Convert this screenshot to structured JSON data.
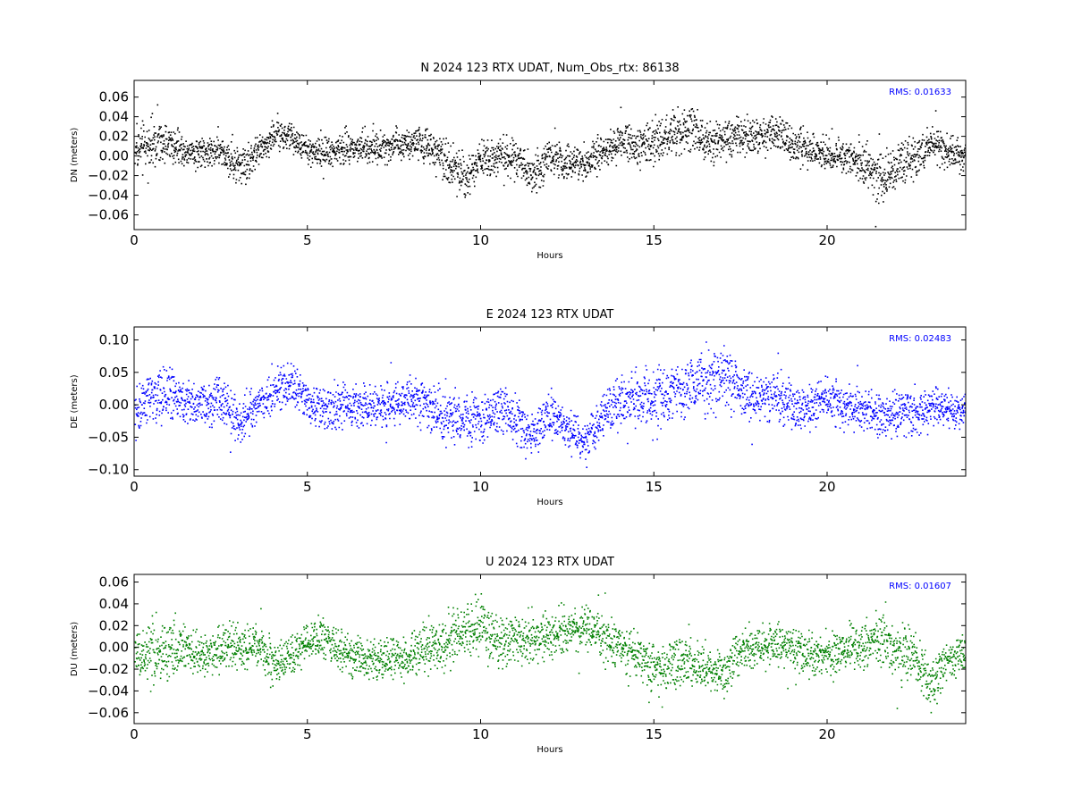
{
  "chart_data": [
    {
      "type": "scatter",
      "title": "N 2024 123 RTX  UDAT, Num_Obs_rtx: 86138",
      "xlabel": "Hours",
      "ylabel": "DN (meters)",
      "xlim": [
        0,
        24
      ],
      "ylim": [
        -0.075,
        0.077
      ],
      "xticks": [
        0,
        5,
        10,
        15,
        20
      ],
      "xtick_labels": [
        "0",
        "5",
        "10",
        "15",
        "20"
      ],
      "yticks": [
        -0.06,
        -0.04,
        -0.02,
        0.0,
        0.02,
        0.04,
        0.06
      ],
      "ytick_labels": [
        "−0.06",
        "−0.04",
        "−0.02",
        "0.00",
        "0.02",
        "0.04",
        "0.06"
      ],
      "annotation": "RMS:  0.01633",
      "annotation_color": "#0000ff",
      "series_color": "#000000",
      "rms": 0.01633,
      "hours": [
        0,
        0.5,
        1,
        1.5,
        2,
        2.5,
        3,
        3.5,
        4,
        4.5,
        5,
        5.5,
        6,
        6.5,
        7,
        7.5,
        8,
        8.5,
        9,
        9.5,
        10,
        10.5,
        11,
        11.5,
        12,
        12.5,
        13,
        13.5,
        14,
        14.5,
        15,
        15.5,
        16,
        16.5,
        17,
        17.5,
        18,
        18.5,
        19,
        19.5,
        20,
        20.5,
        21,
        21.5,
        22,
        22.5,
        23,
        23.5,
        24
      ],
      "center": [
        0.008,
        0.012,
        0.014,
        0.006,
        0.004,
        0.006,
        -0.012,
        0.002,
        0.022,
        0.018,
        0.006,
        0.004,
        0.006,
        0.012,
        0.008,
        0.012,
        0.016,
        0.01,
        -0.006,
        -0.018,
        -0.004,
        0.002,
        -0.002,
        -0.02,
        -0.002,
        -0.006,
        -0.008,
        0.006,
        0.014,
        0.01,
        0.016,
        0.024,
        0.03,
        0.016,
        0.018,
        0.02,
        0.02,
        0.026,
        0.012,
        0.006,
        0.002,
        0.0,
        -0.004,
        -0.026,
        -0.01,
        -0.004,
        0.014,
        0.004,
        0.0
      ],
      "spread": [
        0.014,
        0.018,
        0.014,
        0.012,
        0.012,
        0.012,
        0.016,
        0.012,
        0.012,
        0.01,
        0.01,
        0.014,
        0.014,
        0.012,
        0.012,
        0.012,
        0.012,
        0.014,
        0.016,
        0.018,
        0.014,
        0.014,
        0.014,
        0.016,
        0.014,
        0.014,
        0.014,
        0.014,
        0.016,
        0.016,
        0.016,
        0.018,
        0.018,
        0.014,
        0.014,
        0.016,
        0.014,
        0.016,
        0.014,
        0.012,
        0.012,
        0.012,
        0.016,
        0.018,
        0.018,
        0.016,
        0.012,
        0.012,
        0.012
      ]
    },
    {
      "type": "scatter",
      "title": "E 2024 123 RTX  UDAT",
      "xlabel": "Hours",
      "ylabel": "DE (meters)",
      "xlim": [
        0,
        24
      ],
      "ylim": [
        -0.11,
        0.12
      ],
      "xticks": [
        0,
        5,
        10,
        15,
        20
      ],
      "xtick_labels": [
        "0",
        "5",
        "10",
        "15",
        "20"
      ],
      "yticks": [
        -0.1,
        -0.05,
        0.0,
        0.05,
        0.1
      ],
      "ytick_labels": [
        "−0.10",
        "−0.05",
        "0.00",
        "0.05",
        "0.10"
      ],
      "annotation": "RMS:  0.02483",
      "annotation_color": "#0000ff",
      "series_color": "#0000ff",
      "rms": 0.02483,
      "hours": [
        0,
        0.5,
        1,
        1.5,
        2,
        2.5,
        3,
        3.5,
        4,
        4.5,
        5,
        5.5,
        6,
        6.5,
        7,
        7.5,
        8,
        8.5,
        9,
        9.5,
        10,
        10.5,
        11,
        11.5,
        12,
        12.5,
        13,
        13.5,
        14,
        14.5,
        15,
        15.5,
        16,
        16.5,
        17,
        17.5,
        18,
        18.5,
        19,
        19.5,
        20,
        20.5,
        21,
        21.5,
        22,
        22.5,
        23,
        23.5,
        24
      ],
      "center": [
        -0.01,
        0.01,
        0.02,
        0.005,
        0.0,
        0.01,
        -0.025,
        0.0,
        0.02,
        0.035,
        0.005,
        -0.01,
        0.0,
        0.0,
        -0.005,
        0.005,
        0.01,
        0.0,
        -0.015,
        -0.02,
        -0.02,
        -0.01,
        -0.025,
        -0.045,
        -0.015,
        -0.035,
        -0.055,
        -0.015,
        0.0,
        0.015,
        0.01,
        0.02,
        0.03,
        0.04,
        0.045,
        0.02,
        0.01,
        0.015,
        0.0,
        -0.005,
        0.01,
        0.0,
        -0.005,
        -0.015,
        -0.01,
        -0.015,
        0.0,
        -0.005,
        -0.005
      ],
      "spread": [
        0.025,
        0.035,
        0.03,
        0.025,
        0.025,
        0.025,
        0.025,
        0.02,
        0.025,
        0.025,
        0.02,
        0.025,
        0.025,
        0.025,
        0.025,
        0.025,
        0.025,
        0.025,
        0.03,
        0.03,
        0.025,
        0.025,
        0.025,
        0.025,
        0.025,
        0.025,
        0.025,
        0.03,
        0.035,
        0.03,
        0.03,
        0.03,
        0.03,
        0.035,
        0.035,
        0.03,
        0.025,
        0.025,
        0.025,
        0.025,
        0.025,
        0.025,
        0.025,
        0.025,
        0.025,
        0.025,
        0.025,
        0.02,
        0.02
      ]
    },
    {
      "type": "scatter",
      "title": "U 2024 123 RTX  UDAT",
      "xlabel": "Hours",
      "ylabel": "DU (meters)",
      "xlim": [
        0,
        24
      ],
      "ylim": [
        -0.07,
        0.067
      ],
      "xticks": [
        0,
        5,
        10,
        15,
        20
      ],
      "xtick_labels": [
        "0",
        "5",
        "10",
        "15",
        "20"
      ],
      "yticks": [
        -0.06,
        -0.04,
        -0.02,
        0.0,
        0.02,
        0.04,
        0.06
      ],
      "ytick_labels": [
        "−0.06",
        "−0.04",
        "−0.02",
        "0.00",
        "0.02",
        "0.04",
        "0.06"
      ],
      "annotation": "RMS:  0.01607",
      "annotation_color": "#0000ff",
      "series_color": "#008000",
      "rms": 0.01607,
      "hours": [
        0,
        0.5,
        1,
        1.5,
        2,
        2.5,
        3,
        3.5,
        4,
        4.5,
        5,
        5.5,
        6,
        6.5,
        7,
        7.5,
        8,
        8.5,
        9,
        9.5,
        10,
        10.5,
        11,
        11.5,
        12,
        12.5,
        13,
        13.5,
        14,
        14.5,
        15,
        15.5,
        16,
        16.5,
        17,
        17.5,
        18,
        18.5,
        19,
        19.5,
        20,
        20.5,
        21,
        21.5,
        22,
        22.5,
        23,
        23.5,
        24
      ],
      "center": [
        -0.005,
        -0.01,
        0.0,
        0.0,
        -0.005,
        0.0,
        0.0,
        0.005,
        -0.015,
        -0.01,
        0.005,
        0.01,
        -0.005,
        -0.01,
        -0.012,
        -0.01,
        -0.005,
        0.0,
        0.005,
        0.015,
        0.02,
        0.005,
        0.01,
        0.01,
        0.012,
        0.015,
        0.02,
        0.01,
        0.0,
        -0.005,
        -0.02,
        -0.015,
        -0.01,
        -0.02,
        -0.025,
        0.0,
        0.0,
        0.005,
        0.0,
        -0.005,
        -0.01,
        0.0,
        0.0,
        0.01,
        -0.005,
        -0.01,
        -0.03,
        -0.01,
        -0.005
      ],
      "spread": [
        0.015,
        0.02,
        0.018,
        0.016,
        0.014,
        0.014,
        0.016,
        0.014,
        0.016,
        0.016,
        0.012,
        0.014,
        0.014,
        0.014,
        0.014,
        0.014,
        0.016,
        0.016,
        0.018,
        0.018,
        0.02,
        0.018,
        0.016,
        0.016,
        0.016,
        0.016,
        0.018,
        0.018,
        0.016,
        0.016,
        0.016,
        0.016,
        0.016,
        0.016,
        0.016,
        0.016,
        0.014,
        0.014,
        0.014,
        0.014,
        0.014,
        0.014,
        0.016,
        0.018,
        0.018,
        0.018,
        0.018,
        0.014,
        0.014
      ]
    }
  ]
}
